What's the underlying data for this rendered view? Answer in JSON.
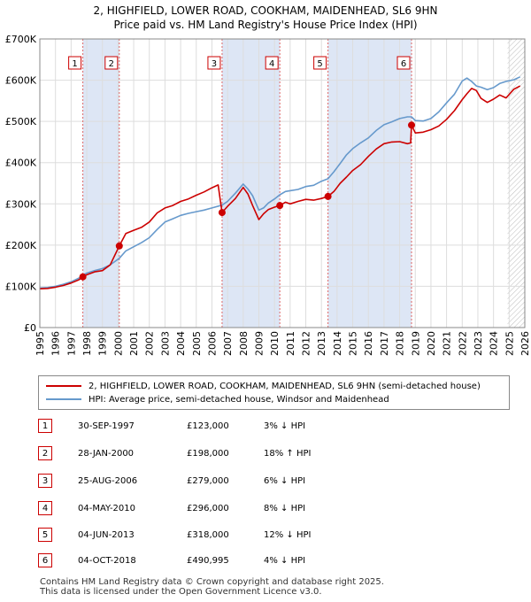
{
  "title": {
    "line1": "2, HIGHFIELD, LOWER ROAD, COOKHAM, MAIDENHEAD, SL6 9HN",
    "line2": "Price paid vs. HM Land Registry's House Price Index (HPI)"
  },
  "colors": {
    "property": "#cc0000",
    "hpi": "#6699cc",
    "shade": "#dde6f5",
    "vline": "#dd6666",
    "grid": "#dddddd"
  },
  "legend": {
    "property": "2, HIGHFIELD, LOWER ROAD, COOKHAM, MAIDENHEAD, SL6 9HN (semi-detached house)",
    "hpi": "HPI: Average price, semi-detached house, Windsor and Maidenhead"
  },
  "sales": [
    {
      "n": "1",
      "date": "30-SEP-1997",
      "price": "£123,000",
      "hpi": "3% ↓ HPI"
    },
    {
      "n": "2",
      "date": "28-JAN-2000",
      "price": "£198,000",
      "hpi": "18% ↑ HPI"
    },
    {
      "n": "3",
      "date": "25-AUG-2006",
      "price": "£279,000",
      "hpi": "6% ↓ HPI"
    },
    {
      "n": "4",
      "date": "04-MAY-2010",
      "price": "£296,000",
      "hpi": "8% ↓ HPI"
    },
    {
      "n": "5",
      "date": "04-JUN-2013",
      "price": "£318,000",
      "hpi": "12% ↓ HPI"
    },
    {
      "n": "6",
      "date": "04-OCT-2018",
      "price": "£490,995",
      "hpi": "4% ↓ HPI"
    }
  ],
  "footer": {
    "line1": "Contains HM Land Registry data © Crown copyright and database right 2025.",
    "line2": "This data is licensed under the Open Government Licence v3.0."
  },
  "chart_data": {
    "type": "line",
    "title": "2, HIGHFIELD, LOWER ROAD, COOKHAM, MAIDENHEAD, SL6 9HN",
    "subtitle": "Price paid vs. HM Land Registry's House Price Index (HPI)",
    "xlim": [
      1995,
      2026
    ],
    "ylim": [
      0,
      700000
    ],
    "x_ticks": [
      "1995",
      "1996",
      "1997",
      "1998",
      "1999",
      "2000",
      "2001",
      "2002",
      "2003",
      "2004",
      "2005",
      "2006",
      "2007",
      "2008",
      "2009",
      "2010",
      "2011",
      "2012",
      "2013",
      "2014",
      "2015",
      "2016",
      "2017",
      "2018",
      "2019",
      "2020",
      "2021",
      "2022",
      "2023",
      "2024",
      "2025",
      "2026"
    ],
    "y_ticks": [
      {
        "value": 0,
        "label": "£0"
      },
      {
        "value": 100000,
        "label": "£100K"
      },
      {
        "value": 200000,
        "label": "£200K"
      },
      {
        "value": 300000,
        "label": "£300K"
      },
      {
        "value": 400000,
        "label": "£400K"
      },
      {
        "value": 500000,
        "label": "£500K"
      },
      {
        "value": 600000,
        "label": "£600K"
      },
      {
        "value": 700000,
        "label": "£700K"
      }
    ],
    "shaded_ranges": [
      [
        1997.75,
        2000.08
      ],
      [
        2006.65,
        2010.34
      ],
      [
        2013.42,
        2018.76
      ]
    ],
    "forecast_start": 2024.9,
    "series": [
      {
        "name": "2, HIGHFIELD, LOWER ROAD, COOKHAM, MAIDENHEAD, SL6 9HN (semi-detached house)",
        "color": "#cc0000",
        "x": [
          1995.0,
          1995.5,
          1996.0,
          1996.5,
          1997.0,
          1997.5,
          1997.75,
          1998.0,
          1998.5,
          1999.0,
          1999.5,
          2000.08,
          2000.5,
          2001.0,
          2001.5,
          2002.0,
          2002.5,
          2003.0,
          2003.5,
          2004.0,
          2004.5,
          2005.0,
          2005.5,
          2006.0,
          2006.4,
          2006.65,
          2007.0,
          2007.5,
          2008.0,
          2008.3,
          2008.6,
          2009.0,
          2009.3,
          2009.6,
          2010.0,
          2010.34,
          2010.7,
          2011.0,
          2011.5,
          2012.0,
          2012.5,
          2013.0,
          2013.42,
          2013.8,
          2014.2,
          2014.6,
          2015.0,
          2015.5,
          2016.0,
          2016.5,
          2017.0,
          2017.5,
          2018.0,
          2018.5,
          2018.7,
          2018.76,
          2019.0,
          2019.5,
          2020.0,
          2020.5,
          2021.0,
          2021.5,
          2022.0,
          2022.3,
          2022.6,
          2022.9,
          2023.2,
          2023.6,
          2024.0,
          2024.4,
          2024.8,
          2025.3,
          2025.7
        ],
        "y": [
          94000,
          95000,
          98000,
          102000,
          108000,
          116000,
          123000,
          128000,
          135000,
          138000,
          152000,
          198000,
          228000,
          236000,
          243000,
          256000,
          278000,
          290000,
          296000,
          306000,
          312000,
          321000,
          329000,
          339000,
          346000,
          279000,
          294000,
          313000,
          340000,
          324000,
          296000,
          262000,
          276000,
          286000,
          292000,
          296000,
          304000,
          300000,
          306000,
          311000,
          309000,
          313000,
          318000,
          330000,
          350000,
          365000,
          381000,
          395000,
          415000,
          433000,
          446000,
          450000,
          451000,
          446000,
          448000,
          490995,
          472000,
          474000,
          480000,
          489000,
          505000,
          526000,
          553000,
          567000,
          580000,
          575000,
          556000,
          546000,
          554000,
          564000,
          557000,
          578000,
          586000
        ]
      },
      {
        "name": "HPI: Average price, semi-detached house, Windsor and Maidenhead",
        "color": "#6699cc",
        "x": [
          1995.0,
          1995.5,
          1996.0,
          1996.5,
          1997.0,
          1997.5,
          1997.75,
          1998.0,
          1998.5,
          1999.0,
          1999.5,
          2000.08,
          2000.5,
          2001.0,
          2001.5,
          2002.0,
          2002.5,
          2003.0,
          2003.5,
          2004.0,
          2004.5,
          2005.0,
          2005.5,
          2006.0,
          2006.65,
          2007.0,
          2007.5,
          2008.0,
          2008.3,
          2008.6,
          2009.0,
          2009.3,
          2009.6,
          2010.0,
          2010.34,
          2010.7,
          2011.0,
          2011.5,
          2012.0,
          2012.5,
          2013.0,
          2013.42,
          2013.8,
          2014.2,
          2014.6,
          2015.0,
          2015.5,
          2016.0,
          2016.5,
          2017.0,
          2017.5,
          2018.0,
          2018.5,
          2018.76,
          2019.0,
          2019.5,
          2020.0,
          2020.5,
          2021.0,
          2021.5,
          2022.0,
          2022.3,
          2022.6,
          2022.9,
          2023.2,
          2023.6,
          2024.0,
          2024.4,
          2024.8,
          2025.3,
          2025.7
        ],
        "y": [
          96000,
          97000,
          100000,
          105000,
          111000,
          120000,
          127000,
          132000,
          138000,
          143000,
          152000,
          168000,
          186000,
          196000,
          206000,
          218000,
          238000,
          256000,
          264000,
          272000,
          277000,
          281000,
          285000,
          290000,
          297000,
          306000,
          326000,
          348000,
          336000,
          320000,
          285000,
          290000,
          302000,
          312000,
          322000,
          330000,
          332000,
          335000,
          342000,
          345000,
          355000,
          361000,
          378000,
          398000,
          419000,
          434000,
          448000,
          460000,
          478000,
          492000,
          499000,
          507000,
          511000,
          511000,
          502000,
          501000,
          507000,
          523000,
          545000,
          566000,
          598000,
          605000,
          597000,
          586000,
          583000,
          577000,
          582000,
          592000,
          597000,
          601000,
          608000
        ]
      }
    ],
    "annotations": [
      {
        "label": "1",
        "x": 1997.75,
        "y": 123000
      },
      {
        "label": "2",
        "x": 2000.08,
        "y": 198000
      },
      {
        "label": "3",
        "x": 2006.65,
        "y": 279000
      },
      {
        "label": "4",
        "x": 2010.34,
        "y": 296000
      },
      {
        "label": "5",
        "x": 2013.42,
        "y": 318000
      },
      {
        "label": "6",
        "x": 2018.76,
        "y": 490995
      }
    ],
    "legend_position": "below"
  }
}
